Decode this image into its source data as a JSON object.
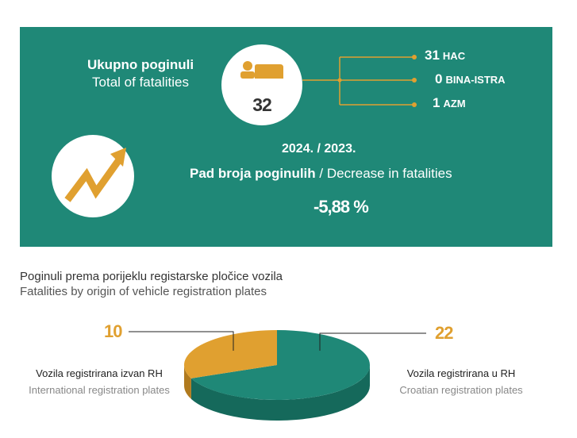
{
  "summary": {
    "total_label_hr": "Ukupno poginuli",
    "total_label_en": "Total of fatalities",
    "total_value": "32",
    "breakdown": [
      {
        "value": "31",
        "label": "HAC"
      },
      {
        "value": "0",
        "label": "BINA-ISTRA"
      },
      {
        "value": "1",
        "label": "AZM"
      }
    ],
    "period": "2024. / 2023.",
    "decrease_label_hr": "Pad broja poginulih",
    "decrease_label_en": " / Decrease in fatalities",
    "change": "-5,88 %"
  },
  "section": {
    "title_hr": "Poginuli prema porijeklu registarske pločice vozila",
    "title_en": "Fatalities by origin of vehicle registration plates"
  },
  "chart_data": {
    "type": "pie",
    "title": "Poginuli prema porijeklu registarske pločice vozila / Fatalities by origin of vehicle registration plates",
    "slices": [
      {
        "value": 22,
        "label_hr": "Vozila registrirana u RH",
        "label_en": "Croatian registration plates",
        "color": "#1f8877"
      },
      {
        "value": 10,
        "label_hr": "Vozila registrirana izvan RH",
        "label_en": "International registration plates",
        "color": "#e0a030"
      }
    ]
  },
  "colors": {
    "teal": "#1f8877",
    "teal_dark": "#15695b",
    "gold": "#e0a030",
    "gold_dark": "#b07a1e"
  }
}
